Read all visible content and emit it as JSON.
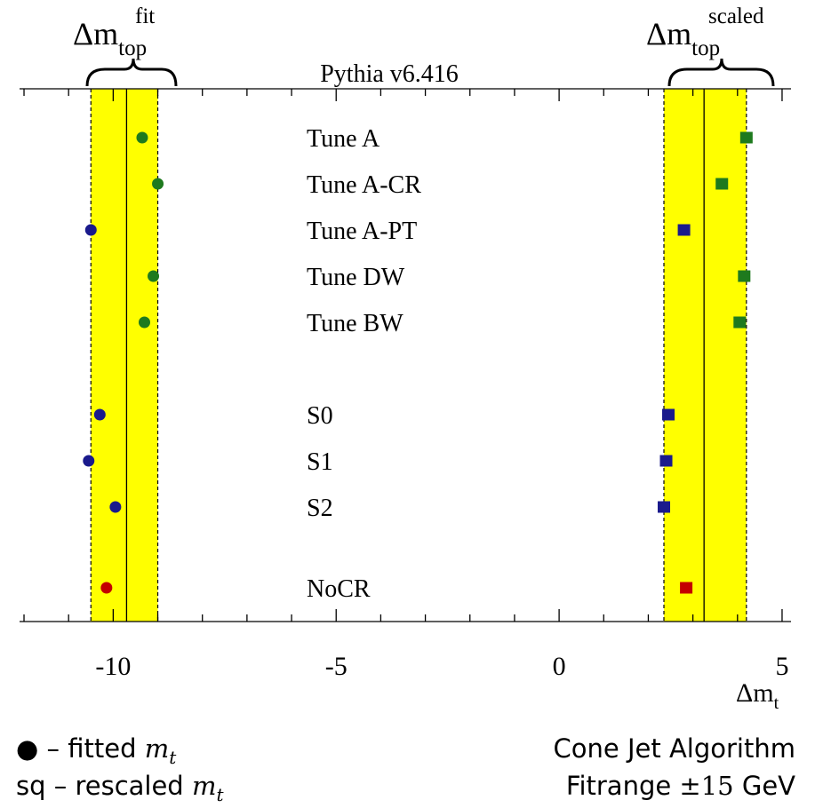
{
  "chart_data": {
    "type": "scatter",
    "title": "Pythia v6.416",
    "xlabel": "Δm",
    "xlabel_sub": "t",
    "xlim": [
      -12.1,
      5.2
    ],
    "xticks": [
      -10,
      -5,
      0,
      5
    ],
    "xtick_labels": [
      "-10",
      "-5",
      "0",
      "5"
    ],
    "minor_tick_step": 1,
    "bands": [
      {
        "label": "Δm",
        "label_sub": "top",
        "label_sup": "fit",
        "center": -9.7,
        "low": -10.5,
        "high": -9.0
      },
      {
        "label": "Δm",
        "label_sub": "top",
        "label_sup": "scaled",
        "center": 3.25,
        "low": 2.35,
        "high": 4.2
      }
    ],
    "rows": [
      {
        "label": "Tune A",
        "fit": -9.35,
        "scaled": 4.2,
        "color": "#1e7a1e"
      },
      {
        "label": "Tune A-CR",
        "fit": -9.0,
        "scaled": 3.65,
        "color": "#1e7a1e"
      },
      {
        "label": "Tune A-PT",
        "fit": -10.5,
        "scaled": 2.8,
        "color": "#1a1a8c"
      },
      {
        "label": "Tune DW",
        "fit": -9.1,
        "scaled": 4.15,
        "color": "#1e7a1e"
      },
      {
        "label": "Tune BW",
        "fit": -9.3,
        "scaled": 4.05,
        "color": "#1e7a1e"
      },
      {
        "label": "S0",
        "fit": -10.3,
        "scaled": 2.45,
        "color": "#1a1a8c"
      },
      {
        "label": "S1",
        "fit": -10.55,
        "scaled": 2.4,
        "color": "#1a1a8c"
      },
      {
        "label": "S2",
        "fit": -9.95,
        "scaled": 2.35,
        "color": "#1a1a8c"
      },
      {
        "label": "NoCR",
        "fit": -10.15,
        "scaled": 2.85,
        "color": "#c40000"
      }
    ],
    "band_color": "#ffff00"
  },
  "legend": {
    "fitted_marker": "●",
    "fitted_text": " – fitted ",
    "rescaled_text": "sq – rescaled ",
    "m_symbol": "m",
    "m_sub": "t"
  },
  "info": {
    "algorithm": "Cone Jet Algorithm",
    "fitrange_text": "Fitrange ",
    "fitrange_pm": "±15",
    "fitrange_unit": " GeV"
  }
}
